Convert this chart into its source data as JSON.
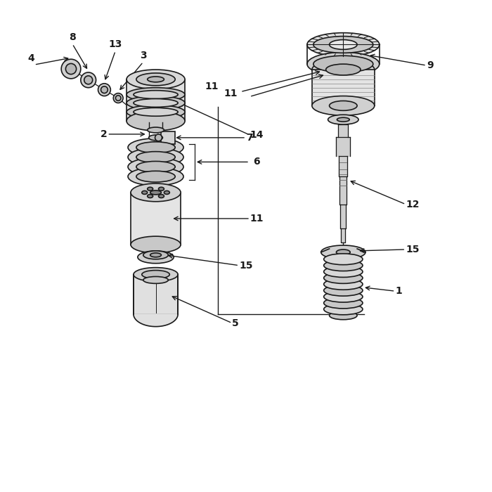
{
  "background_color": "#ffffff",
  "line_color": "#1a1a1a",
  "fig_width": 7.0,
  "fig_height": 7.0,
  "dpi": 100
}
